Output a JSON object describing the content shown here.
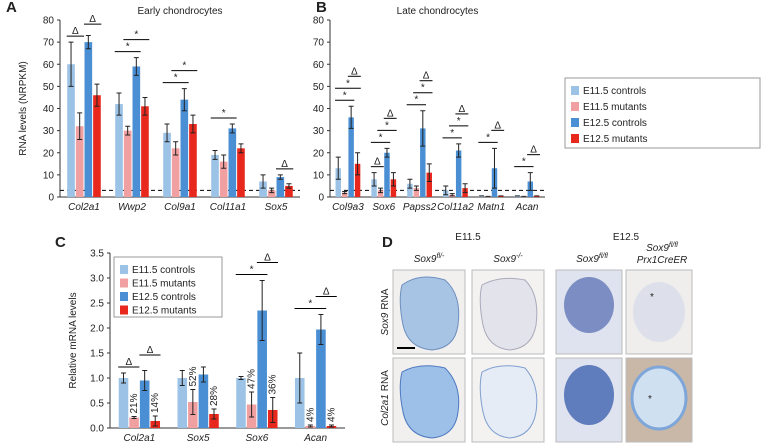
{
  "chart_data": [
    {
      "type": "bar",
      "panel_label": "A",
      "title": "Early chondrocytes",
      "y_label": "RNA levels (NRPKM)",
      "categories": [
        "Col2a1",
        "Wwp2",
        "Col9a1",
        "Col11a1",
        "Sox5"
      ],
      "series": [
        {
          "color": "#9cc3e6",
          "values": [
            60,
            42,
            29,
            19,
            7
          ],
          "errors": [
            10,
            5,
            4,
            2,
            3
          ]
        },
        {
          "color": "#f0a0a0",
          "values": [
            32,
            30,
            22,
            16,
            3
          ],
          "errors": [
            6,
            2,
            3,
            3,
            1
          ]
        },
        {
          "color": "#4a8fd4",
          "values": [
            70,
            59,
            44,
            31,
            9
          ],
          "errors": [
            3,
            4,
            5,
            2,
            1
          ]
        },
        {
          "color": "#e8281c",
          "values": [
            46,
            41,
            33,
            22,
            5
          ],
          "errors": [
            5,
            4,
            4,
            2,
            1
          ]
        }
      ],
      "ylim": [
        0,
        80
      ],
      "yticks": [
        0,
        10,
        20,
        30,
        40,
        50,
        60,
        70,
        80
      ],
      "threshold": 3,
      "significance": [
        {
          "label": "Δ",
          "category": 0,
          "bars": [
            0,
            1
          ]
        },
        {
          "label": "Δ",
          "category": 0,
          "bars": [
            2,
            3
          ]
        },
        {
          "label": "*",
          "category": 1,
          "bars": [
            0,
            2
          ]
        },
        {
          "label": "*",
          "category": 1,
          "bars": [
            1,
            3
          ]
        },
        {
          "label": "*",
          "category": 2,
          "bars": [
            0,
            2
          ]
        },
        {
          "label": "*",
          "category": 2,
          "bars": [
            1,
            3
          ]
        },
        {
          "label": "*",
          "category": 3,
          "bars": [
            0,
            2
          ]
        },
        {
          "label": "Δ",
          "category": 4,
          "bars": [
            2,
            3
          ]
        }
      ]
    },
    {
      "type": "bar",
      "panel_label": "B",
      "title": "Late chondrocytes",
      "categories": [
        "Col9a3",
        "Sox6",
        "Papss2",
        "Col11a2",
        "Matn1",
        "Acan"
      ],
      "series": [
        {
          "name": "E11.5 controls",
          "color": "#9cc3e6",
          "values": [
            13,
            8,
            6,
            3,
            0.5,
            0.5
          ],
          "errors": [
            5,
            3,
            2,
            2,
            0,
            0
          ]
        },
        {
          "name": "E11.5 mutants",
          "color": "#f0a0a0",
          "values": [
            2,
            3,
            4,
            1,
            0.3,
            0.3
          ],
          "errors": [
            0.5,
            1,
            1,
            0.5,
            0,
            0
          ]
        },
        {
          "name": "E12.5 controls",
          "color": "#4a8fd4",
          "values": [
            36,
            20,
            31,
            21,
            13,
            7
          ],
          "errors": [
            5,
            2,
            8,
            3,
            9,
            4
          ]
        },
        {
          "name": "E12.5 mutants",
          "color": "#e8281c",
          "values": [
            15,
            8,
            11,
            4,
            0.5,
            0.5
          ],
          "errors": [
            5,
            3,
            4,
            2,
            0,
            0
          ]
        }
      ],
      "ylim": [
        0,
        80
      ],
      "yticks": [
        0,
        10,
        20,
        30,
        40,
        50,
        60,
        70,
        80
      ],
      "threshold": 3,
      "legend": "outside-right",
      "significance": [
        {
          "label": "*",
          "category": 0,
          "bars": [
            0,
            2
          ]
        },
        {
          "label": "*",
          "category": 0,
          "bars": [
            0,
            3
          ]
        },
        {
          "label": "Δ",
          "category": 0,
          "bars": [
            2,
            3
          ]
        },
        {
          "label": "Δ",
          "category": 1,
          "bars": [
            0,
            1
          ]
        },
        {
          "label": "*",
          "category": 1,
          "bars": [
            0,
            2
          ]
        },
        {
          "label": "*",
          "category": 1,
          "bars": [
            1,
            3
          ]
        },
        {
          "label": "Δ",
          "category": 1,
          "bars": [
            2,
            3
          ]
        },
        {
          "label": "*",
          "category": 2,
          "bars": [
            0,
            2
          ]
        },
        {
          "label": "*",
          "category": 2,
          "bars": [
            1,
            3
          ]
        },
        {
          "label": "Δ",
          "category": 2,
          "bars": [
            2,
            3
          ]
        },
        {
          "label": "*",
          "category": 3,
          "bars": [
            0,
            2
          ]
        },
        {
          "label": "*",
          "category": 3,
          "bars": [
            1,
            3
          ]
        },
        {
          "label": "Δ",
          "category": 3,
          "bars": [
            2,
            3
          ]
        },
        {
          "label": "*",
          "category": 4,
          "bars": [
            0,
            2
          ]
        },
        {
          "label": "Δ",
          "category": 4,
          "bars": [
            2,
            3
          ]
        },
        {
          "label": "*",
          "category": 5,
          "bars": [
            0,
            2
          ]
        },
        {
          "label": "Δ",
          "category": 5,
          "bars": [
            2,
            3
          ]
        }
      ]
    },
    {
      "type": "bar",
      "panel_label": "C",
      "y_label": "Relative mRNA levels",
      "categories": [
        "Col2a1",
        "Sox5",
        "Sox6",
        "Acan"
      ],
      "series": [
        {
          "name": "E11.5 controls",
          "color": "#9cc3e6",
          "values": [
            1.0,
            1.0,
            1.0,
            1.0
          ],
          "errors": [
            0.1,
            0.15,
            0.03,
            0.5
          ]
        },
        {
          "name": "E11.5 mutants",
          "color": "#f0a0a0",
          "values": [
            0.21,
            0.52,
            0.47,
            0.04
          ],
          "errors": [
            0.02,
            0.25,
            0.25,
            0.02
          ],
          "value_labels": [
            "21%",
            "52%",
            "47%",
            "4%"
          ]
        },
        {
          "name": "E12.5 controls",
          "color": "#4a8fd4",
          "values": [
            0.95,
            1.07,
            2.35,
            1.97
          ],
          "errors": [
            0.2,
            0.15,
            0.6,
            0.3
          ]
        },
        {
          "name": "E12.5 mutants",
          "color": "#e8281c",
          "values": [
            0.14,
            0.28,
            0.36,
            0.04
          ],
          "errors": [
            0.1,
            0.1,
            0.25,
            0.02
          ],
          "value_labels": [
            "14%",
            "28%",
            "36%",
            "4%"
          ]
        }
      ],
      "ylim": [
        0,
        3.5
      ],
      "yticks": [
        {
          "value": 0,
          "label": "0.0"
        },
        0.5,
        {
          "value": 1,
          "label": "1.0"
        },
        1.5,
        {
          "value": 2,
          "label": "2.0"
        },
        2.5,
        {
          "value": 3,
          "label": "3.0"
        },
        3.5
      ],
      "legend": "upper-left",
      "significance": [
        {
          "label": "Δ",
          "category": 0,
          "bars": [
            0,
            1
          ]
        },
        {
          "label": "Δ",
          "category": 0,
          "bars": [
            2,
            3
          ]
        },
        {
          "label": "*",
          "category": 2,
          "bars": [
            0,
            2
          ]
        },
        {
          "label": "Δ",
          "category": 2,
          "bars": [
            2,
            3
          ]
        },
        {
          "label": "*",
          "category": 3,
          "bars": [
            0,
            2
          ]
        },
        {
          "label": "Δ",
          "category": 3,
          "bars": [
            2,
            3
          ]
        }
      ]
    }
  ],
  "panel_d": {
    "panel_label": "D",
    "stages": [
      "E11.5",
      "E12.5"
    ],
    "columns": [
      {
        "gene": "Sox9",
        "genotype": "fl/-"
      },
      {
        "gene": "Sox9",
        "genotype": "-/-"
      },
      {
        "gene": "Sox9",
        "genotype": "fl/fl"
      },
      {
        "gene": "Sox9",
        "genotype": "fl/fl",
        "driver": "Prx1CreER"
      }
    ],
    "rows": [
      {
        "gene": "Sox9",
        "suffix": "RNA"
      },
      {
        "gene": "Col2a1",
        "suffix": "RNA"
      }
    ],
    "markers": [
      "*",
      "*"
    ]
  }
}
